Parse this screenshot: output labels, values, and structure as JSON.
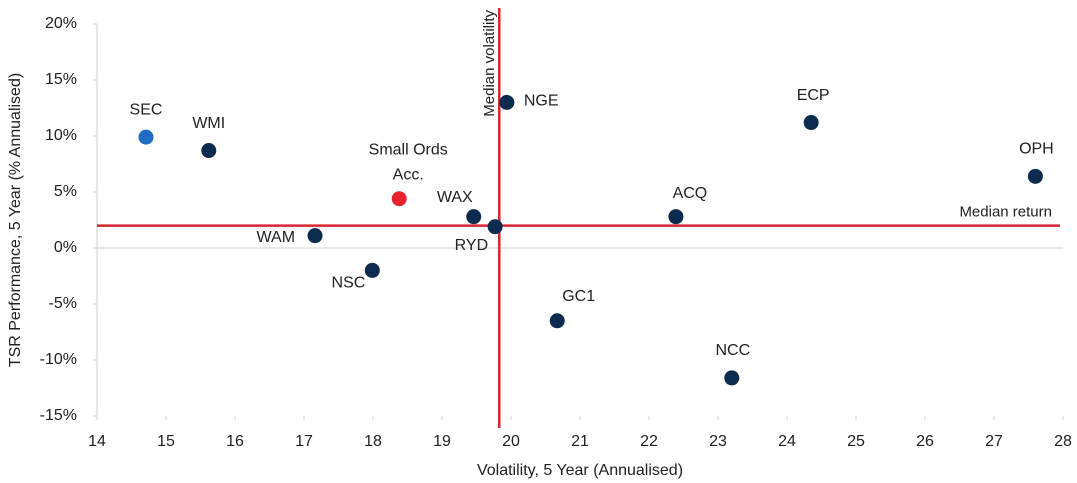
{
  "chart_data": {
    "type": "scatter",
    "x_label": "Volatility, 5 Year (Annualised)",
    "y_label": "TSR Performance, 5 Year (% Annualised)",
    "xlim": [
      14,
      28
    ],
    "xticks": [
      14,
      15,
      16,
      17,
      18,
      19,
      20,
      21,
      22,
      23,
      24,
      25,
      26,
      27,
      28
    ],
    "ylim": [
      -15,
      20
    ],
    "yticks": [
      {
        "value": -15,
        "label": "-15%"
      },
      {
        "value": -10,
        "label": "-10%"
      },
      {
        "value": -5,
        "label": "-5%"
      },
      {
        "value": 0,
        "label": "0%"
      },
      {
        "value": 5,
        "label": "5%"
      },
      {
        "value": 10,
        "label": "10%"
      },
      {
        "value": 15,
        "label": "15%"
      },
      {
        "value": 20,
        "label": "20%"
      }
    ],
    "points": [
      {
        "label": "SEC",
        "x": 14.71,
        "y": 9.9,
        "color": "#1f6cc4"
      },
      {
        "label": "WMI",
        "x": 15.62,
        "y": 8.7,
        "color": "#0d2a4f"
      },
      {
        "label": "Small Ords Acc.",
        "x": 18.38,
        "y": 4.4,
        "color": "#e8222b"
      },
      {
        "label": "WAM",
        "x": 17.16,
        "y": 1.1,
        "color": "#0d2a4f"
      },
      {
        "label": "NSC",
        "x": 17.99,
        "y": -2.0,
        "color": "#0d2a4f"
      },
      {
        "label": "WAX",
        "x": 19.46,
        "y": 2.8,
        "color": "#0d2a4f"
      },
      {
        "label": "RYD",
        "x": 19.77,
        "y": 1.9,
        "color": "#0d2a4f"
      },
      {
        "label": "NGE",
        "x": 19.94,
        "y": 13.0,
        "color": "#0d2a4f"
      },
      {
        "label": "GC1",
        "x": 20.67,
        "y": -6.5,
        "color": "#0d2a4f"
      },
      {
        "label": "ACQ",
        "x": 22.39,
        "y": 2.8,
        "color": "#0d2a4f"
      },
      {
        "label": "NCC",
        "x": 23.2,
        "y": -11.6,
        "color": "#0d2a4f"
      },
      {
        "label": "ECP",
        "x": 24.35,
        "y": 11.2,
        "color": "#0d2a4f"
      },
      {
        "label": "OPH",
        "x": 27.6,
        "y": 6.4,
        "color": "#0d2a4f"
      }
    ],
    "reference_lines": [
      {
        "axis": "x",
        "value": 19.83,
        "label": "Median volatility",
        "color": "#d62631"
      },
      {
        "axis": "y",
        "value": 2.0,
        "label": "Median return",
        "color": "#d62631"
      }
    ]
  }
}
